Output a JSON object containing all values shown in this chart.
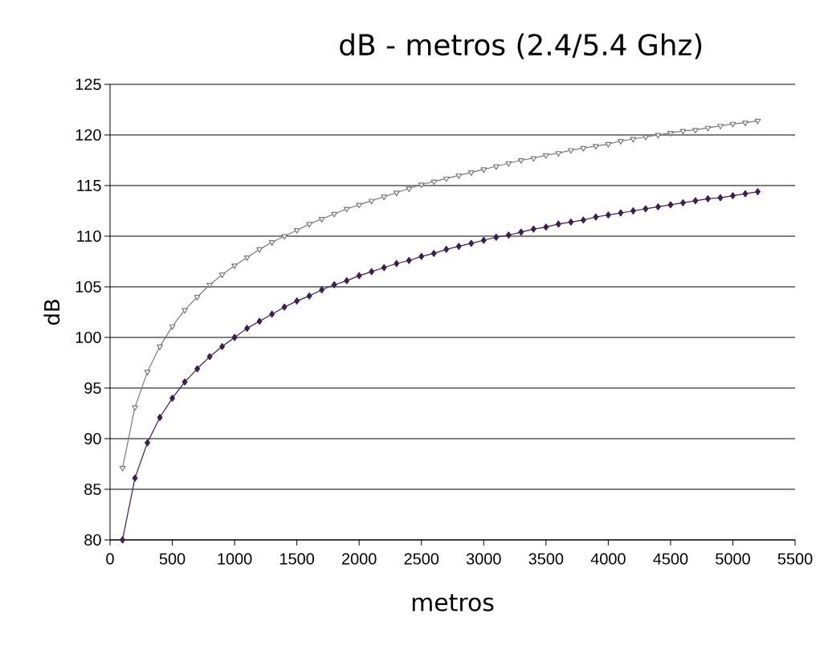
{
  "chart_data": {
    "type": "line",
    "title": "dB - metros (2.4/5.4 Ghz)",
    "xlabel": "metros",
    "ylabel": "dB",
    "x": [
      100,
      200,
      300,
      400,
      500,
      600,
      700,
      800,
      900,
      1000,
      1100,
      1200,
      1300,
      1400,
      1500,
      1600,
      1700,
      1800,
      1900,
      2000,
      2100,
      2200,
      2300,
      2400,
      2500,
      2600,
      2700,
      2800,
      2900,
      3000,
      3100,
      3200,
      3300,
      3400,
      3500,
      3600,
      3700,
      3800,
      3900,
      4000,
      4100,
      4200,
      4300,
      4400,
      4500,
      4600,
      4700,
      4800,
      4900,
      5000,
      5100,
      5200
    ],
    "series": [
      {
        "color": "#7a7a7a",
        "marker": "triangle",
        "values": [
          87.1,
          93.1,
          96.6,
          99.1,
          101.1,
          102.7,
          104.0,
          105.2,
          106.2,
          107.1,
          107.9,
          108.7,
          109.4,
          110.0,
          110.6,
          111.2,
          111.7,
          112.2,
          112.7,
          113.1,
          113.5,
          113.9,
          114.3,
          114.7,
          115.1,
          115.4,
          115.7,
          116.0,
          116.3,
          116.6,
          116.9,
          117.2,
          117.5,
          117.7,
          118.0,
          118.2,
          118.5,
          118.7,
          118.9,
          119.1,
          119.4,
          119.6,
          119.8,
          120.0,
          120.2,
          120.4,
          120.5,
          120.7,
          120.9,
          121.1,
          121.2,
          121.4
        ]
      },
      {
        "color": "#3d1f4d",
        "marker": "diamond",
        "values": [
          80.0,
          86.1,
          89.6,
          92.1,
          94.0,
          95.6,
          96.9,
          98.1,
          99.1,
          100.0,
          100.9,
          101.6,
          102.3,
          103.0,
          103.6,
          104.1,
          104.7,
          105.2,
          105.6,
          106.1,
          106.5,
          106.9,
          107.3,
          107.6,
          108.0,
          108.3,
          108.7,
          109.0,
          109.3,
          109.6,
          109.9,
          110.1,
          110.4,
          110.7,
          110.9,
          111.2,
          111.4,
          111.6,
          111.9,
          112.1,
          112.3,
          112.5,
          112.7,
          112.9,
          113.1,
          113.3,
          113.5,
          113.7,
          113.8,
          114.0,
          114.2,
          114.4
        ]
      }
    ],
    "xlim": [
      0,
      5500
    ],
    "xticks": [
      0,
      500,
      1000,
      1500,
      2000,
      2500,
      3000,
      3500,
      4000,
      4500,
      5000,
      5500
    ],
    "ylim": [
      80,
      125
    ],
    "yticks": [
      80,
      85,
      90,
      95,
      100,
      105,
      110,
      115,
      120,
      125
    ],
    "grid": "y",
    "line_style": "solid"
  }
}
